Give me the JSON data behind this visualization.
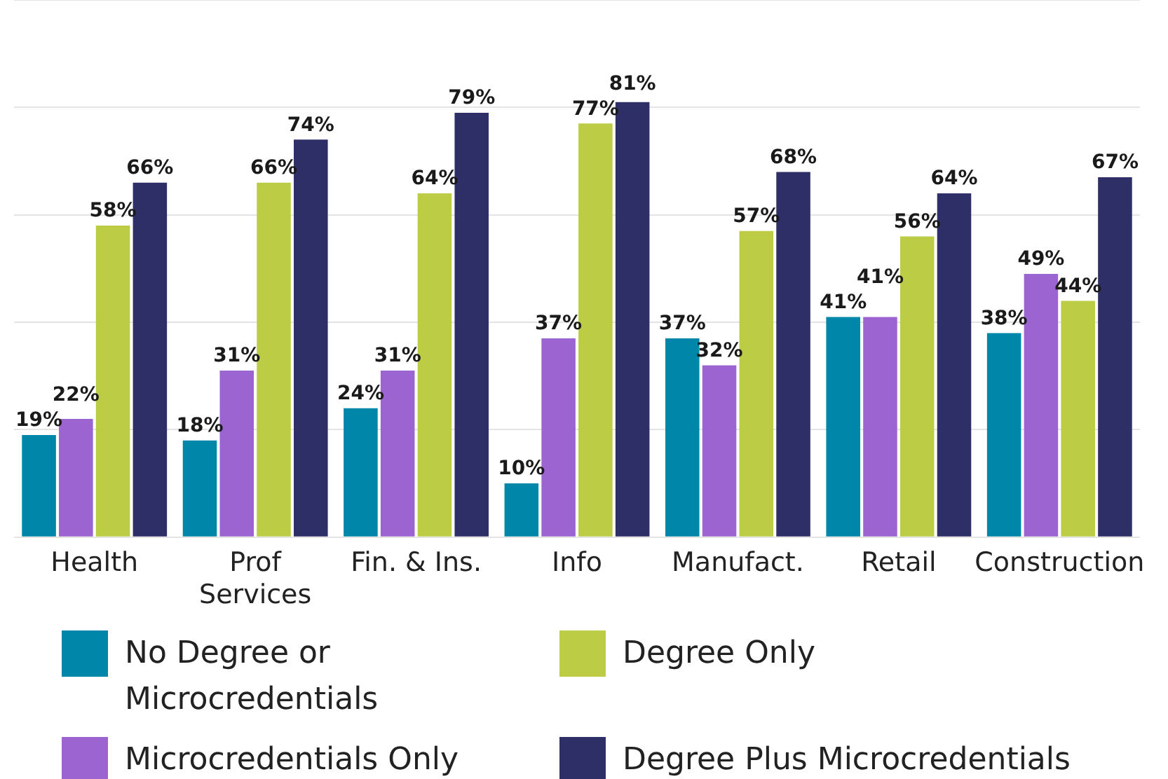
{
  "chart_data": {
    "type": "bar",
    "categories": [
      "Health",
      "Prof Services",
      "Fin. & Ins.",
      "Info",
      "Manufact.",
      "Retail",
      "Construction"
    ],
    "series": [
      {
        "name": "No Degree or Microcredentials",
        "color": "#0086a8",
        "values": [
          19,
          18,
          24,
          10,
          37,
          41,
          38
        ],
        "value_labels": [
          "19%",
          "18%",
          "24%",
          "10%",
          "37%",
          "41%",
          "38%"
        ]
      },
      {
        "name": "Microcredentials Only",
        "color": "#9b64d0",
        "values": [
          22,
          31,
          31,
          37,
          32,
          41,
          49
        ],
        "value_labels": [
          "22%",
          "31%",
          "31%",
          "37%",
          "32%",
          "41%",
          "49%"
        ]
      },
      {
        "name": "Degree Only",
        "color": "#bccc44",
        "values": [
          58,
          66,
          64,
          77,
          57,
          56,
          44
        ],
        "value_labels": [
          "58%",
          "66%",
          "64%",
          "77%",
          "57%",
          "56%",
          "44%"
        ]
      },
      {
        "name": "Degree Plus Microcredentials",
        "color": "#2e2f66",
        "values": [
          66,
          74,
          79,
          81,
          68,
          64,
          67
        ],
        "value_labels": [
          "66%",
          "74%",
          "79%",
          "81%",
          "68%",
          "64%",
          "67%"
        ]
      }
    ],
    "tick_labels": "x",
    "grid": "y",
    "legend": "bottom"
  }
}
